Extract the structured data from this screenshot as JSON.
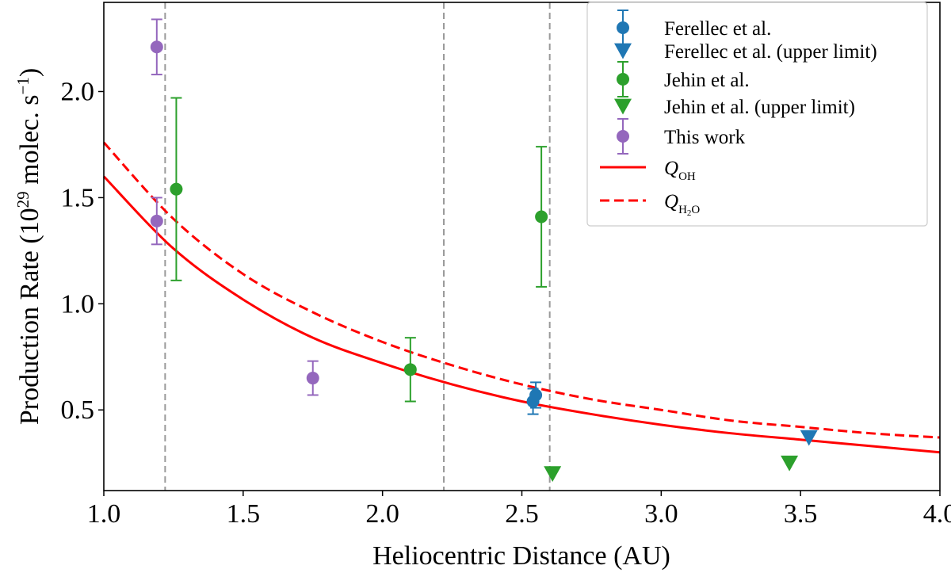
{
  "chart_data": {
    "type": "scatter",
    "xlabel": "Heliocentric Distance (AU)",
    "ylabel_prefix": "Production Rate (10",
    "ylabel_exp": "29",
    "ylabel_unit": " molec. s",
    "ylabel_unit_exp": "−1",
    "ylabel_suffix": ")",
    "xlim": [
      1.0,
      4.0
    ],
    "ylim": [
      0.12,
      2.42
    ],
    "xticks": [
      1.0,
      1.5,
      2.0,
      2.5,
      3.0,
      3.5,
      4.0
    ],
    "xtick_labels": [
      "1.0",
      "1.5",
      "2.0",
      "2.5",
      "3.0",
      "3.5",
      "4.0"
    ],
    "yticks": [
      0.5,
      1.0,
      1.5,
      2.0
    ],
    "ytick_labels": [
      "0.5",
      "1.0",
      "1.5",
      "2.0"
    ],
    "vlines": [
      1.22,
      2.22,
      2.6
    ],
    "legend_position": "top-right",
    "series": [
      {
        "key": "ferellec",
        "name": "Ferellec et al.",
        "marker": "circle",
        "color": "#1f77b4",
        "points": [
          {
            "x": 2.54,
            "y": 0.54,
            "yerr": 0.06
          },
          {
            "x": 2.55,
            "y": 0.57,
            "yerr": 0.06
          }
        ]
      },
      {
        "key": "ferellec_ul",
        "name": "Ferellec et al. (upper limit)",
        "marker": "triangle-down",
        "color": "#1f77b4",
        "points": [
          {
            "x": 3.53,
            "y": 0.37
          }
        ]
      },
      {
        "key": "jehin",
        "name": "Jehin et al.",
        "marker": "circle",
        "color": "#2ca02c",
        "points": [
          {
            "x": 1.26,
            "y": 1.54,
            "yerr": 0.43
          },
          {
            "x": 2.1,
            "y": 0.69,
            "yerr": 0.15
          },
          {
            "x": 2.57,
            "y": 1.41,
            "yerr": 0.33
          }
        ]
      },
      {
        "key": "jehin_ul",
        "name": "Jehin et al. (upper limit)",
        "marker": "triangle-down",
        "color": "#2ca02c",
        "points": [
          {
            "x": 2.61,
            "y": 0.2
          },
          {
            "x": 3.46,
            "y": 0.25
          }
        ]
      },
      {
        "key": "thiswork",
        "name": "This work",
        "marker": "circle",
        "color": "#9467bd",
        "points": [
          {
            "x": 1.19,
            "y": 2.21,
            "yerr": 0.13
          },
          {
            "x": 1.19,
            "y": 1.39,
            "yerr": 0.11
          },
          {
            "x": 1.75,
            "y": 0.65,
            "yerr": 0.08
          }
        ]
      }
    ],
    "curves": [
      {
        "key": "q_oh",
        "name_main": "Q",
        "name_sub": "OH",
        "style": "solid",
        "color": "#ff0000",
        "points": [
          [
            1.0,
            1.6
          ],
          [
            1.25,
            1.26
          ],
          [
            1.5,
            1.02
          ],
          [
            1.75,
            0.84
          ],
          [
            2.0,
            0.72
          ],
          [
            2.25,
            0.62
          ],
          [
            2.5,
            0.54
          ],
          [
            2.75,
            0.48
          ],
          [
            3.0,
            0.43
          ],
          [
            3.25,
            0.39
          ],
          [
            3.5,
            0.36
          ],
          [
            3.75,
            0.33
          ],
          [
            4.0,
            0.3
          ]
        ]
      },
      {
        "key": "q_h2o",
        "name_main": "Q",
        "name_sub": "H",
        "name_sub2": "2",
        "name_sub3": "O",
        "style": "dashed",
        "color": "#ff0000",
        "points": [
          [
            1.0,
            1.76
          ],
          [
            1.25,
            1.4
          ],
          [
            1.5,
            1.14
          ],
          [
            1.75,
            0.96
          ],
          [
            2.0,
            0.82
          ],
          [
            2.25,
            0.71
          ],
          [
            2.5,
            0.62
          ],
          [
            2.75,
            0.55
          ],
          [
            3.0,
            0.5
          ],
          [
            3.25,
            0.45
          ],
          [
            3.5,
            0.42
          ],
          [
            3.75,
            0.39
          ],
          [
            4.0,
            0.37
          ]
        ]
      }
    ]
  }
}
